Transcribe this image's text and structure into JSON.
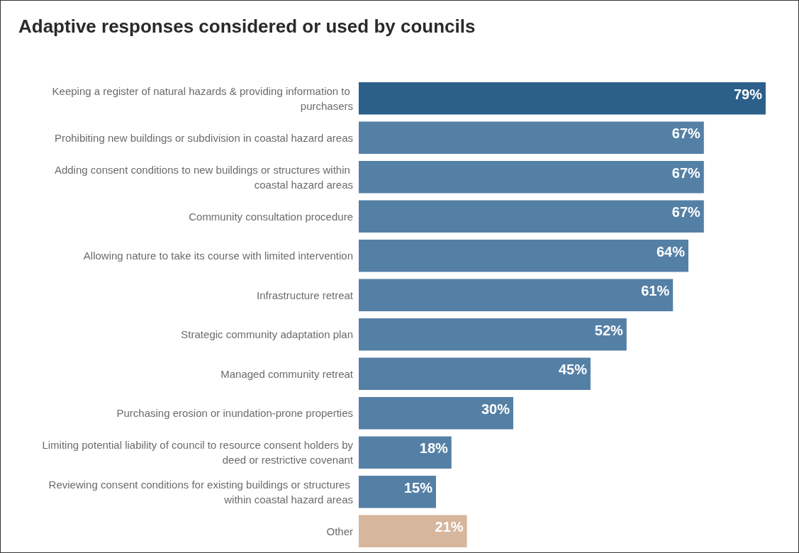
{
  "chart_data": {
    "type": "bar",
    "orientation": "horizontal",
    "title": "Adaptive responses considered or used by councils",
    "categories": [
      "Keeping a register of natural hazards & providing information to purchasers",
      "Prohibiting new buildings or subdivision in coastal hazard areas",
      "Adding consent conditions to new buildings or structures within coastal hazard areas",
      "Community consultation procedure",
      "Allowing nature to take its course with limited intervention",
      "Infrastructure retreat",
      "Strategic community adaptation plan",
      "Managed community retreat",
      "Purchasing erosion or inundation-prone properties",
      "Limiting potential liability of council to resource consent holders by deed or restrictive covenant",
      "Reviewing consent conditions for existing buildings or structures within coastal hazard areas",
      "Other"
    ],
    "values": [
      79,
      67,
      67,
      67,
      64,
      61,
      52,
      45,
      30,
      18,
      15,
      21
    ],
    "value_labels": [
      "79%",
      "67%",
      "67%",
      "67%",
      "64%",
      "61%",
      "52%",
      "45%",
      "30%",
      "18%",
      "15%",
      "21%"
    ],
    "colors": [
      "#2c5f8a",
      "#5580a6",
      "#5580a6",
      "#5580a6",
      "#5580a6",
      "#5580a6",
      "#5580a6",
      "#5580a6",
      "#5580a6",
      "#5580a6",
      "#5580a6",
      "#d6b69c"
    ]
  }
}
